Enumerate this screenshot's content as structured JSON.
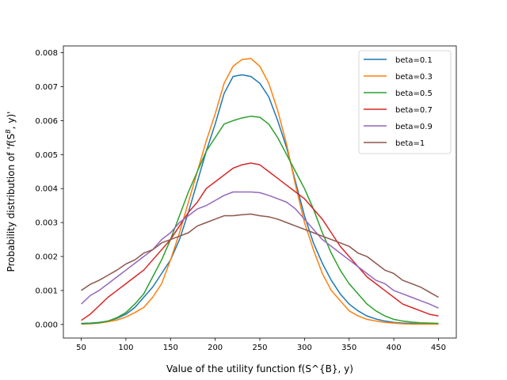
{
  "chart_data": {
    "type": "line",
    "title": "",
    "xlabel": "Value of the utility function f(S^{B}, y)",
    "ylabel_parts": {
      "prefix": "Probability distribution of '",
      "f": "f",
      "open": "(S",
      "sup": "B",
      "rest": ", y)'"
    },
    "xlim": [
      30,
      470
    ],
    "ylim": [
      -0.0004,
      0.0082
    ],
    "x_ticks": [
      50,
      100,
      150,
      200,
      250,
      300,
      350,
      400,
      450
    ],
    "x_tick_labels": [
      "50",
      "100",
      "150",
      "200",
      "250",
      "300",
      "350",
      "400",
      "450"
    ],
    "y_ticks": [
      0,
      0.001,
      0.002,
      0.003,
      0.004,
      0.005,
      0.006,
      0.007,
      0.008
    ],
    "y_tick_labels": [
      "0.000",
      "0.001",
      "0.002",
      "0.003",
      "0.004",
      "0.005",
      "0.006",
      "0.007",
      "0.008"
    ],
    "grid": false,
    "legend_position": "top-right",
    "x": [
      50,
      60,
      70,
      80,
      90,
      100,
      110,
      120,
      130,
      140,
      150,
      160,
      170,
      180,
      190,
      200,
      210,
      220,
      230,
      240,
      250,
      260,
      270,
      280,
      290,
      300,
      310,
      320,
      330,
      340,
      350,
      360,
      370,
      380,
      390,
      400,
      410,
      420,
      430,
      440,
      450
    ],
    "series": [
      {
        "name": "beta=0.1",
        "color": "#1f77b4",
        "values": [
          3e-05,
          4e-05,
          6e-05,
          0.0001,
          0.00018,
          0.0003,
          0.0005,
          0.0008,
          0.0011,
          0.0015,
          0.0019,
          0.0025,
          0.0033,
          0.0042,
          0.0051,
          0.0059,
          0.0068,
          0.0073,
          0.00735,
          0.0073,
          0.0071,
          0.0067,
          0.006,
          0.0052,
          0.0042,
          0.0032,
          0.0024,
          0.0018,
          0.0013,
          0.0009,
          0.0006,
          0.0004,
          0.00025,
          0.00016,
          0.0001,
          6e-05,
          4e-05,
          3e-05,
          2e-05,
          2e-05,
          1e-05
        ]
      },
      {
        "name": "beta=0.3",
        "color": "#ff7f0e",
        "values": [
          1e-05,
          2e-05,
          4e-05,
          8e-05,
          0.00013,
          0.00022,
          0.00035,
          0.0005,
          0.0008,
          0.0012,
          0.0019,
          0.0027,
          0.0036,
          0.0045,
          0.0054,
          0.0062,
          0.0071,
          0.0076,
          0.0078,
          0.00783,
          0.0076,
          0.0071,
          0.0063,
          0.0053,
          0.0041,
          0.003,
          0.0022,
          0.0015,
          0.001,
          0.0007,
          0.0004,
          0.00025,
          0.00015,
          0.0001,
          6e-05,
          4e-05,
          2e-05,
          1e-05,
          1e-05,
          1e-05,
          1e-05
        ]
      },
      {
        "name": "beta=0.5",
        "color": "#2ca02c",
        "values": [
          2e-05,
          3e-05,
          5e-05,
          0.0001,
          0.0002,
          0.00035,
          0.0006,
          0.0009,
          0.0014,
          0.0019,
          0.0025,
          0.0032,
          0.0039,
          0.0045,
          0.0051,
          0.0055,
          0.0059,
          0.006,
          0.00608,
          0.00613,
          0.0061,
          0.0059,
          0.0055,
          0.005,
          0.0045,
          0.004,
          0.0034,
          0.0027,
          0.0021,
          0.0016,
          0.0012,
          0.0009,
          0.0006,
          0.0004,
          0.00025,
          0.00015,
          0.0001,
          7e-05,
          5e-05,
          4e-05,
          3e-05
        ]
      },
      {
        "name": "beta=0.7",
        "color": "#d62728",
        "values": [
          0.00012,
          0.0003,
          0.00055,
          0.0008,
          0.001,
          0.0012,
          0.0014,
          0.0016,
          0.0019,
          0.0022,
          0.0025,
          0.0029,
          0.0033,
          0.0036,
          0.004,
          0.0042,
          0.0044,
          0.0046,
          0.0047,
          0.00475,
          0.0047,
          0.0045,
          0.0043,
          0.0041,
          0.0039,
          0.0037,
          0.0034,
          0.0031,
          0.0027,
          0.0023,
          0.002,
          0.0017,
          0.0014,
          0.0012,
          0.001,
          0.0008,
          0.0006,
          0.0005,
          0.0004,
          0.0003,
          0.00025
        ]
      },
      {
        "name": "beta=0.9",
        "color": "#9467bd",
        "values": [
          0.0006,
          0.00085,
          0.001,
          0.0012,
          0.0014,
          0.0016,
          0.0018,
          0.002,
          0.0022,
          0.0025,
          0.0027,
          0.003,
          0.0032,
          0.0034,
          0.0035,
          0.00365,
          0.0038,
          0.0039,
          0.0039,
          0.0039,
          0.00388,
          0.0038,
          0.0037,
          0.0036,
          0.0034,
          0.0031,
          0.0028,
          0.0025,
          0.0023,
          0.0021,
          0.0019,
          0.0017,
          0.0015,
          0.0013,
          0.0012,
          0.001,
          0.0009,
          0.0008,
          0.0007,
          0.0006,
          0.00048
        ]
      },
      {
        "name": "beta=1",
        "color": "#8c564b",
        "values": [
          0.001,
          0.00118,
          0.0013,
          0.00145,
          0.0016,
          0.00178,
          0.0019,
          0.0021,
          0.0022,
          0.0024,
          0.0025,
          0.0026,
          0.0027,
          0.0029,
          0.003,
          0.0031,
          0.0032,
          0.0032,
          0.00323,
          0.00325,
          0.0032,
          0.00317,
          0.0031,
          0.003,
          0.0029,
          0.0028,
          0.0027,
          0.0026,
          0.0025,
          0.0024,
          0.0023,
          0.0021,
          0.002,
          0.0018,
          0.0016,
          0.0015,
          0.0013,
          0.0012,
          0.0011,
          0.00095,
          0.0008
        ]
      }
    ]
  }
}
